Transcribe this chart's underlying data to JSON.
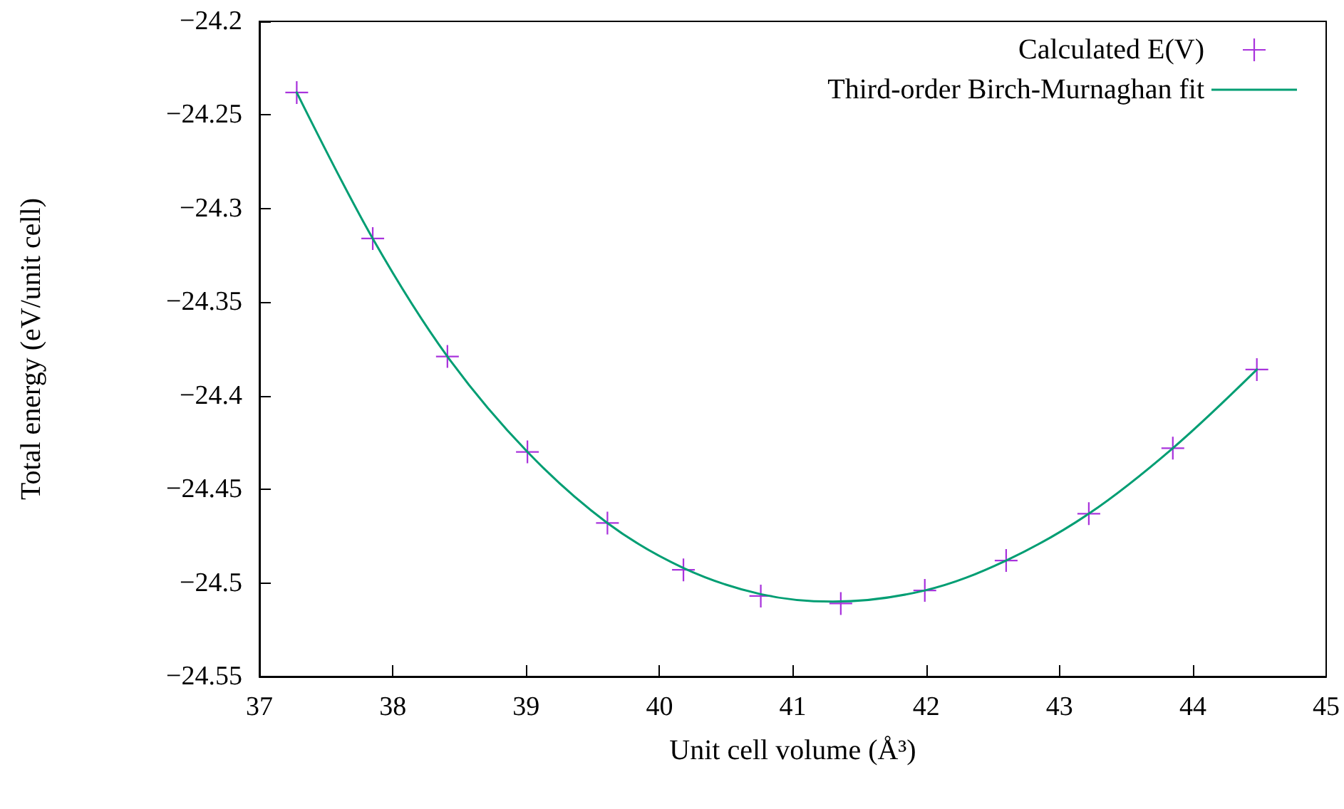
{
  "chart_data": {
    "type": "scatter",
    "xlabel": "Unit cell volume (Å³)",
    "ylabel": "Total energy (eV/unit cell)",
    "xlim": [
      37,
      45
    ],
    "xticks": [
      37,
      38,
      39,
      40,
      41,
      42,
      43,
      44,
      45
    ],
    "ylim": [
      -24.55,
      -24.2
    ],
    "yticks": [
      -24.55,
      -24.5,
      -24.45,
      -24.4,
      -24.35,
      -24.3,
      -24.25,
      -24.2
    ],
    "grid": false,
    "legend": "top right",
    "series": [
      {
        "name": "Calculated E(V)",
        "marker": "cross",
        "color": "#9400d3",
        "x": [
          37.28,
          37.85,
          38.41,
          39.01,
          39.61,
          40.18,
          40.76,
          41.36,
          41.99,
          42.6,
          43.22,
          43.85,
          44.48
        ],
        "values": [
          -24.238,
          -24.316,
          -24.379,
          -24.43,
          -24.468,
          -24.493,
          -24.507,
          -24.511,
          -24.504,
          -24.488,
          -24.463,
          -24.428,
          -24.386
        ]
      },
      {
        "name": "Third-order Birch-Murnaghan fit",
        "type": "line",
        "marker": "none",
        "line_style": "solid",
        "color": "#009e73",
        "x": [
          37.28,
          37.85,
          38.41,
          39.01,
          39.61,
          40.18,
          40.76,
          41.3,
          41.99,
          42.6,
          43.22,
          43.85,
          44.48
        ],
        "values": [
          -24.238,
          -24.316,
          -24.379,
          -24.43,
          -24.468,
          -24.492,
          -24.506,
          -24.51,
          -24.504,
          -24.488,
          -24.463,
          -24.428,
          -24.386
        ]
      }
    ]
  }
}
